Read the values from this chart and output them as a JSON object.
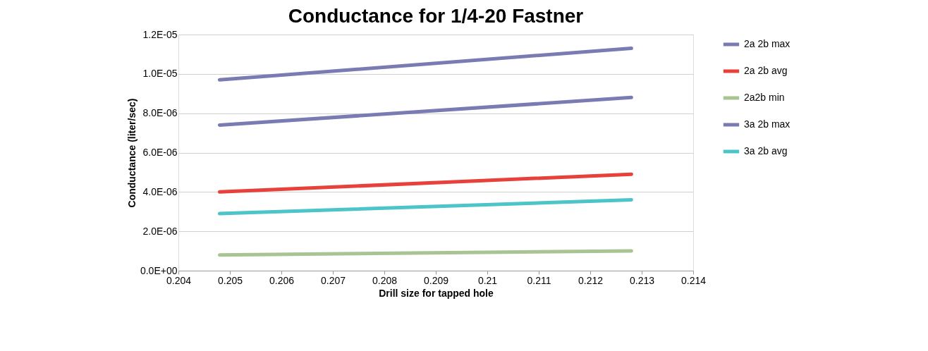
{
  "chart_data": {
    "type": "line",
    "title": "Conductance for 1/4-20 Fastner",
    "xlabel": "Drill size for tapped hole",
    "ylabel": "Conductance (liter/sec)",
    "x": [
      0.2048,
      0.2128
    ],
    "series": [
      {
        "name": "2a 2b max",
        "color": "#7b7bb3",
        "values": [
          9.7e-06,
          1.13e-05
        ]
      },
      {
        "name": "2a 2b avg",
        "color": "#e8403a",
        "values": [
          4e-06,
          4.9e-06
        ]
      },
      {
        "name": "2a2b min",
        "color": "#a8c493",
        "values": [
          8e-07,
          1e-06
        ]
      },
      {
        "name": "3a 2b max",
        "color": "#7b7bb3",
        "values": [
          7.4e-06,
          8.8e-06
        ]
      },
      {
        "name": "3a 2b avg",
        "color": "#4cc4c8",
        "values": [
          2.9e-06,
          3.6e-06
        ]
      }
    ],
    "xlim": [
      0.204,
      0.214
    ],
    "xticks": [
      0.204,
      0.205,
      0.206,
      0.207,
      0.208,
      0.209,
      0.21,
      0.211,
      0.212,
      0.213,
      0.214
    ],
    "ylim": [
      0,
      1.2e-05
    ],
    "yticks": [
      {
        "value": 0,
        "label": "0.0E+00"
      },
      {
        "value": 2e-06,
        "label": "2.0E-06"
      },
      {
        "value": 4e-06,
        "label": "4.0E-06"
      },
      {
        "value": 6e-06,
        "label": "6.0E-06"
      },
      {
        "value": 8e-06,
        "label": "8.0E-06"
      },
      {
        "value": 1e-05,
        "label": "1.0E-05"
      },
      {
        "value": 1.2e-05,
        "label": "1.2E-05"
      }
    ],
    "grid": "y",
    "legend": "right",
    "marker": "none",
    "line_style": "solid"
  }
}
